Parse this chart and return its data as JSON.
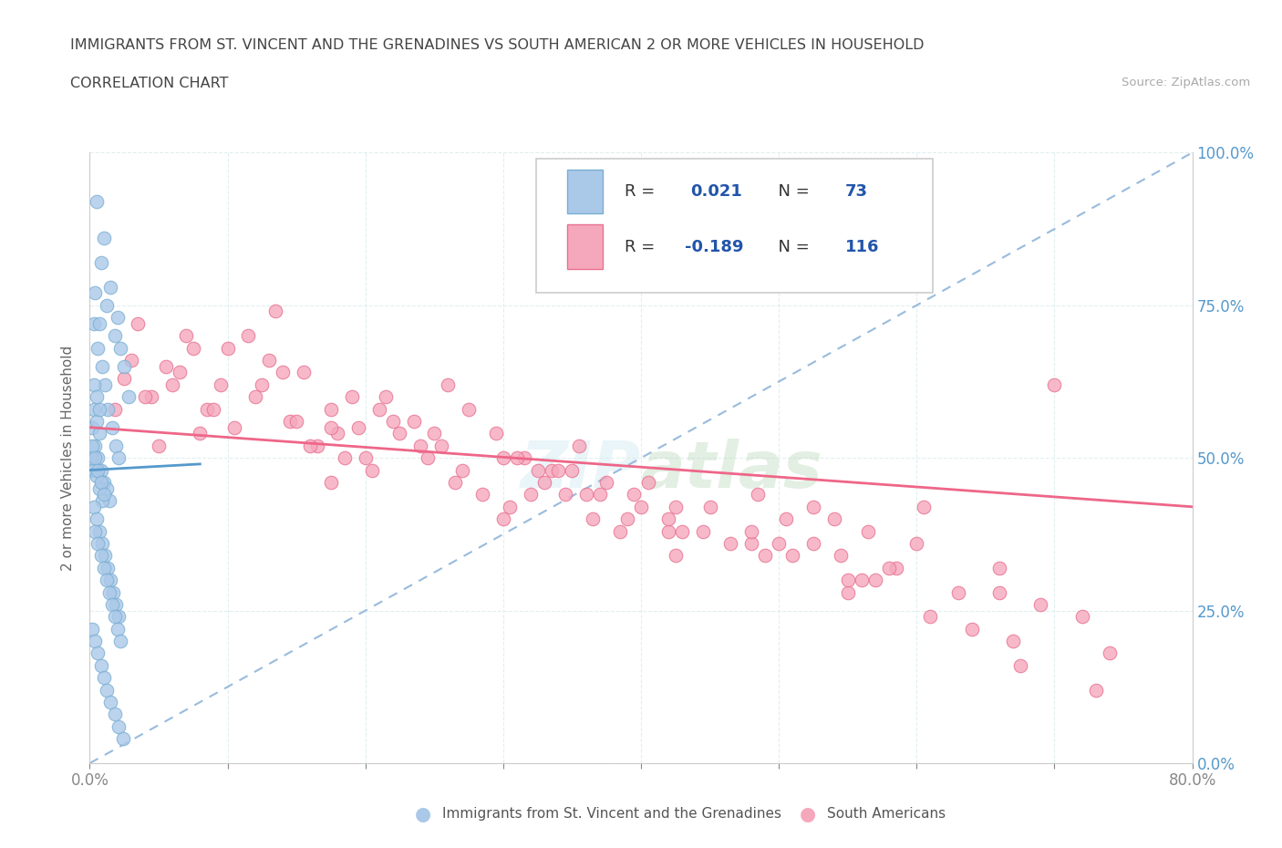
{
  "title": "IMMIGRANTS FROM ST. VINCENT AND THE GRENADINES VS SOUTH AMERICAN 2 OR MORE VEHICLES IN HOUSEHOLD",
  "subtitle": "CORRELATION CHART",
  "source": "Source: ZipAtlas.com",
  "ylabel": "2 or more Vehicles in Household",
  "xlim": [
    0.0,
    0.8
  ],
  "ylim": [
    0.0,
    1.0
  ],
  "blue_R": 0.021,
  "blue_N": 73,
  "pink_R": -0.189,
  "pink_N": 116,
  "legend_label_blue": "Immigrants from St. Vincent and the Grenadines",
  "legend_label_pink": "South Americans",
  "blue_color": "#aac8e8",
  "pink_color": "#f5a8bc",
  "blue_edge": "#7aafd4",
  "pink_edge": "#e87090",
  "ref_line_color": "#99bbdd",
  "blue_trend_color": "#5599cc",
  "pink_trend_color": "#ee6688",
  "grid_color": "#ddeeee",
  "right_tick_color": "#5599cc",
  "blue_scatter_x": [
    0.005,
    0.008,
    0.01,
    0.012,
    0.015,
    0.018,
    0.02,
    0.022,
    0.025,
    0.028,
    0.003,
    0.006,
    0.009,
    0.011,
    0.013,
    0.016,
    0.019,
    0.021,
    0.004,
    0.007,
    0.002,
    0.004,
    0.006,
    0.008,
    0.01,
    0.012,
    0.014,
    0.003,
    0.005,
    0.007,
    0.001,
    0.003,
    0.005,
    0.007,
    0.009,
    0.002,
    0.004,
    0.006,
    0.008,
    0.01,
    0.003,
    0.005,
    0.007,
    0.009,
    0.011,
    0.013,
    0.015,
    0.017,
    0.019,
    0.021,
    0.004,
    0.006,
    0.008,
    0.01,
    0.012,
    0.014,
    0.016,
    0.018,
    0.02,
    0.022,
    0.002,
    0.004,
    0.006,
    0.008,
    0.01,
    0.012,
    0.015,
    0.018,
    0.021,
    0.024,
    0.003,
    0.005,
    0.007
  ],
  "blue_scatter_y": [
    0.92,
    0.82,
    0.86,
    0.75,
    0.78,
    0.7,
    0.73,
    0.68,
    0.65,
    0.6,
    0.72,
    0.68,
    0.65,
    0.62,
    0.58,
    0.55,
    0.52,
    0.5,
    0.77,
    0.72,
    0.55,
    0.52,
    0.5,
    0.48,
    0.46,
    0.45,
    0.43,
    0.58,
    0.56,
    0.54,
    0.5,
    0.48,
    0.47,
    0.45,
    0.43,
    0.52,
    0.5,
    0.48,
    0.46,
    0.44,
    0.42,
    0.4,
    0.38,
    0.36,
    0.34,
    0.32,
    0.3,
    0.28,
    0.26,
    0.24,
    0.38,
    0.36,
    0.34,
    0.32,
    0.3,
    0.28,
    0.26,
    0.24,
    0.22,
    0.2,
    0.22,
    0.2,
    0.18,
    0.16,
    0.14,
    0.12,
    0.1,
    0.08,
    0.06,
    0.04,
    0.62,
    0.6,
    0.58
  ],
  "pink_scatter_x": [
    0.018,
    0.035,
    0.055,
    0.075,
    0.095,
    0.115,
    0.135,
    0.155,
    0.175,
    0.195,
    0.215,
    0.235,
    0.255,
    0.275,
    0.295,
    0.315,
    0.335,
    0.355,
    0.375,
    0.395,
    0.025,
    0.045,
    0.065,
    0.085,
    0.105,
    0.125,
    0.145,
    0.165,
    0.185,
    0.205,
    0.225,
    0.245,
    0.265,
    0.285,
    0.305,
    0.325,
    0.345,
    0.365,
    0.385,
    0.405,
    0.425,
    0.445,
    0.465,
    0.485,
    0.505,
    0.525,
    0.545,
    0.565,
    0.585,
    0.605,
    0.03,
    0.06,
    0.09,
    0.12,
    0.15,
    0.18,
    0.21,
    0.24,
    0.27,
    0.3,
    0.33,
    0.36,
    0.39,
    0.42,
    0.45,
    0.48,
    0.51,
    0.54,
    0.57,
    0.6,
    0.63,
    0.66,
    0.69,
    0.72,
    0.04,
    0.08,
    0.16,
    0.2,
    0.32,
    0.4,
    0.48,
    0.56,
    0.64,
    0.1,
    0.14,
    0.22,
    0.26,
    0.34,
    0.42,
    0.5,
    0.58,
    0.66,
    0.74,
    0.07,
    0.13,
    0.19,
    0.25,
    0.31,
    0.37,
    0.43,
    0.49,
    0.55,
    0.61,
    0.67,
    0.73,
    0.175,
    0.35,
    0.525,
    0.7,
    0.05,
    0.175,
    0.3,
    0.425,
    0.55,
    0.675
  ],
  "pink_scatter_y": [
    0.58,
    0.72,
    0.65,
    0.68,
    0.62,
    0.7,
    0.74,
    0.64,
    0.58,
    0.55,
    0.6,
    0.56,
    0.52,
    0.58,
    0.54,
    0.5,
    0.48,
    0.52,
    0.46,
    0.44,
    0.63,
    0.6,
    0.64,
    0.58,
    0.55,
    0.62,
    0.56,
    0.52,
    0.5,
    0.48,
    0.54,
    0.5,
    0.46,
    0.44,
    0.42,
    0.48,
    0.44,
    0.4,
    0.38,
    0.46,
    0.42,
    0.38,
    0.36,
    0.44,
    0.4,
    0.36,
    0.34,
    0.38,
    0.32,
    0.42,
    0.66,
    0.62,
    0.58,
    0.6,
    0.56,
    0.54,
    0.58,
    0.52,
    0.48,
    0.5,
    0.46,
    0.44,
    0.4,
    0.38,
    0.42,
    0.36,
    0.34,
    0.4,
    0.3,
    0.36,
    0.28,
    0.32,
    0.26,
    0.24,
    0.6,
    0.54,
    0.52,
    0.5,
    0.44,
    0.42,
    0.38,
    0.3,
    0.22,
    0.68,
    0.64,
    0.56,
    0.62,
    0.48,
    0.4,
    0.36,
    0.32,
    0.28,
    0.18,
    0.7,
    0.66,
    0.6,
    0.54,
    0.5,
    0.44,
    0.38,
    0.34,
    0.28,
    0.24,
    0.2,
    0.12,
    0.55,
    0.48,
    0.42,
    0.62,
    0.52,
    0.46,
    0.4,
    0.34,
    0.3,
    0.16
  ]
}
